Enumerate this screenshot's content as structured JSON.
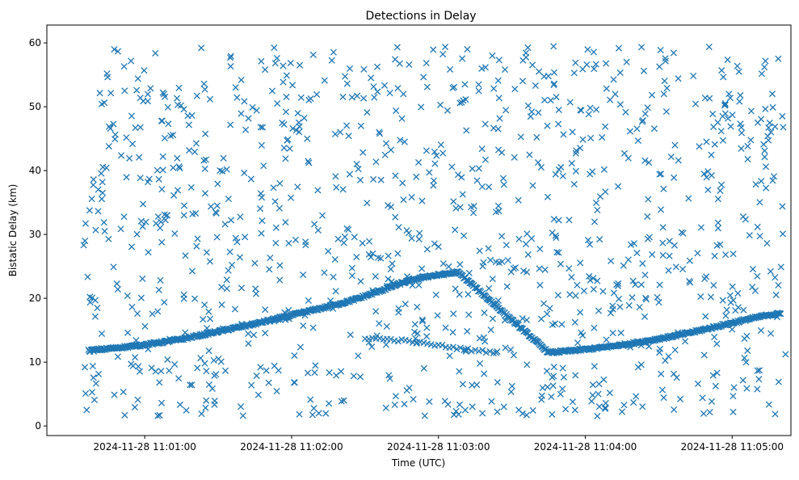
{
  "chart_data": {
    "type": "scatter",
    "title": "Detections in Delay",
    "xlabel": "Time (UTC)",
    "ylabel": "Bistatic Delay (km)",
    "marker": "x",
    "color": "#1f77b4",
    "grid": false,
    "x_axis": {
      "unit": "time",
      "range": [
        "2024-11-28 11:00:20",
        "2024-11-28 11:05:24"
      ],
      "ticks": [
        "2024-11-28 11:01:00",
        "2024-11-28 11:02:00",
        "2024-11-28 11:03:00",
        "2024-11-28 11:04:00",
        "2024-11-28 11:05:00"
      ]
    },
    "y_axis": {
      "range": [
        -1.5,
        62.8
      ],
      "ticks": [
        0,
        10,
        20,
        30,
        40,
        50,
        60
      ]
    },
    "series": [
      {
        "description": "target track",
        "points": [
          [
            "2024-11-28 11:00:37",
            11.8
          ],
          [
            "2024-11-28 11:00:45",
            12.1
          ],
          [
            "2024-11-28 11:00:55",
            12.5
          ],
          [
            "2024-11-28 11:01:05",
            13.0
          ],
          [
            "2024-11-28 11:01:15",
            13.6
          ],
          [
            "2024-11-28 11:01:25",
            14.4
          ],
          [
            "2024-11-28 11:01:35",
            15.2
          ],
          [
            "2024-11-28 11:01:45",
            16.0
          ],
          [
            "2024-11-28 11:01:55",
            16.9
          ],
          [
            "2024-11-28 11:02:05",
            17.8
          ],
          [
            "2024-11-28 11:02:15",
            18.7
          ],
          [
            "2024-11-28 11:02:25",
            19.7
          ],
          [
            "2024-11-28 11:02:35",
            21.0
          ],
          [
            "2024-11-28 11:02:45",
            22.4
          ],
          [
            "2024-11-28 11:02:55",
            23.4
          ],
          [
            "2024-11-28 11:03:05",
            23.9
          ],
          [
            "2024-11-28 11:03:08",
            24.1
          ],
          [
            "2024-11-28 11:03:45",
            11.5
          ],
          [
            "2024-11-28 11:03:55",
            11.8
          ],
          [
            "2024-11-28 11:04:05",
            12.2
          ],
          [
            "2024-11-28 11:04:15",
            12.7
          ],
          [
            "2024-11-28 11:04:25",
            13.3
          ],
          [
            "2024-11-28 11:04:35",
            14.0
          ],
          [
            "2024-11-28 11:04:45",
            14.8
          ],
          [
            "2024-11-28 11:04:55",
            15.7
          ],
          [
            "2024-11-28 11:05:05",
            16.6
          ],
          [
            "2024-11-28 11:05:15",
            17.4
          ],
          [
            "2024-11-28 11:05:20",
            17.6
          ]
        ]
      },
      {
        "description": "ghost track",
        "points": [
          [
            "2024-11-28 11:02:30",
            13.8
          ],
          [
            "2024-11-28 11:02:45",
            13.4
          ],
          [
            "2024-11-28 11:03:00",
            12.6
          ],
          [
            "2024-11-28 11:03:15",
            11.8
          ],
          [
            "2024-11-28 11:03:25",
            11.5
          ]
        ]
      },
      {
        "description": "clutter",
        "point_count": 1100,
        "y_range": [
          1.5,
          59.5
        ]
      }
    ]
  }
}
